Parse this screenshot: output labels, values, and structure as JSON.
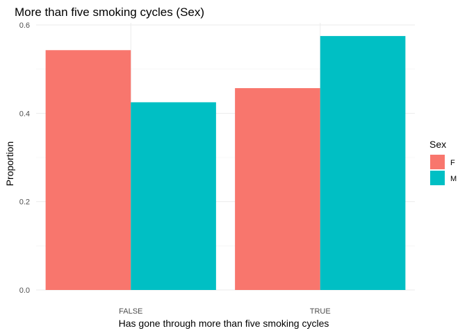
{
  "chart_data": {
    "type": "bar",
    "title": "More than five smoking cycles (Sex)",
    "xlabel": "Has gone through more than five smoking cycles",
    "ylabel": "Proportion",
    "categories": [
      "FALSE",
      "TRUE"
    ],
    "series": [
      {
        "name": "F",
        "values": [
          0.543,
          0.457
        ],
        "color": "#F8766D"
      },
      {
        "name": "M",
        "values": [
          0.425,
          0.575
        ],
        "color": "#00BFC4"
      }
    ],
    "ylim": [
      0,
      0.6
    ],
    "yticks": [
      "0.0",
      "0.2",
      "0.4",
      "0.6"
    ],
    "grid": true,
    "legend": {
      "title": "Sex",
      "placement": "right"
    }
  }
}
